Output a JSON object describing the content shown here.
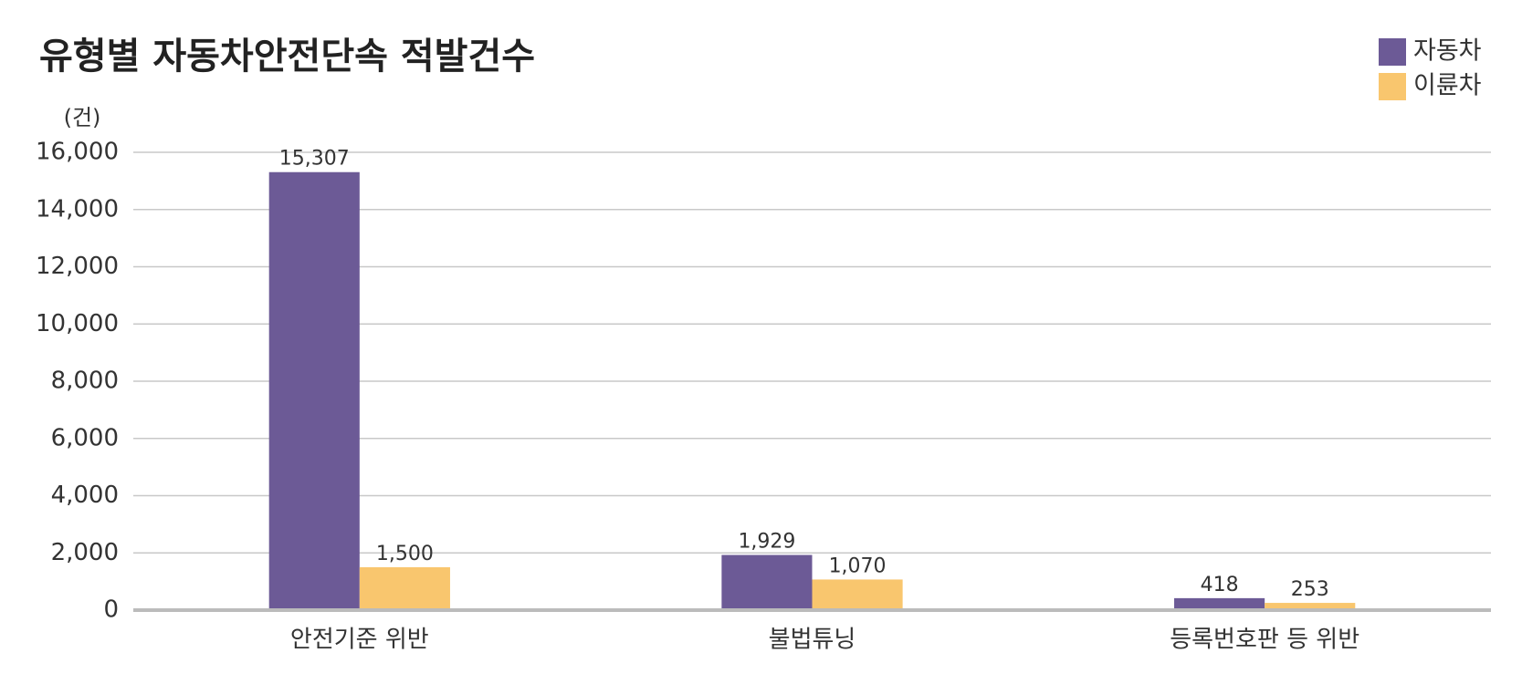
{
  "chart_data": {
    "type": "bar",
    "title": "유형별 자동차안전단속 적발건수",
    "y_unit": "(건)",
    "categories": [
      "안전기준 위반",
      "불법튜닝",
      "등록번호판 등 위반"
    ],
    "series": [
      {
        "name": "자동차",
        "color": "#6c5a96",
        "values": [
          15307,
          1929,
          418
        ],
        "value_labels": [
          "15,307",
          "1,929",
          "418"
        ]
      },
      {
        "name": "이륜차",
        "color": "#f9c66e",
        "values": [
          1500,
          1070,
          253
        ],
        "value_labels": [
          "1,500",
          "1,070",
          "253"
        ]
      }
    ],
    "ylim": [
      0,
      16000
    ],
    "yticks": [
      0,
      {
        "value": 2000,
        "label": "2,000"
      },
      {
        "value": 4000,
        "label": "4,000"
      },
      {
        "value": 6000,
        "label": "6,000"
      },
      {
        "value": 8000,
        "label": "8,000"
      },
      {
        "value": 10000,
        "label": "10,000"
      },
      {
        "value": 12000,
        "label": "12,000"
      },
      {
        "value": 14000,
        "label": "14,000"
      },
      {
        "value": 16000,
        "label": "16,000"
      }
    ],
    "grid": true,
    "legend": "top-right"
  }
}
